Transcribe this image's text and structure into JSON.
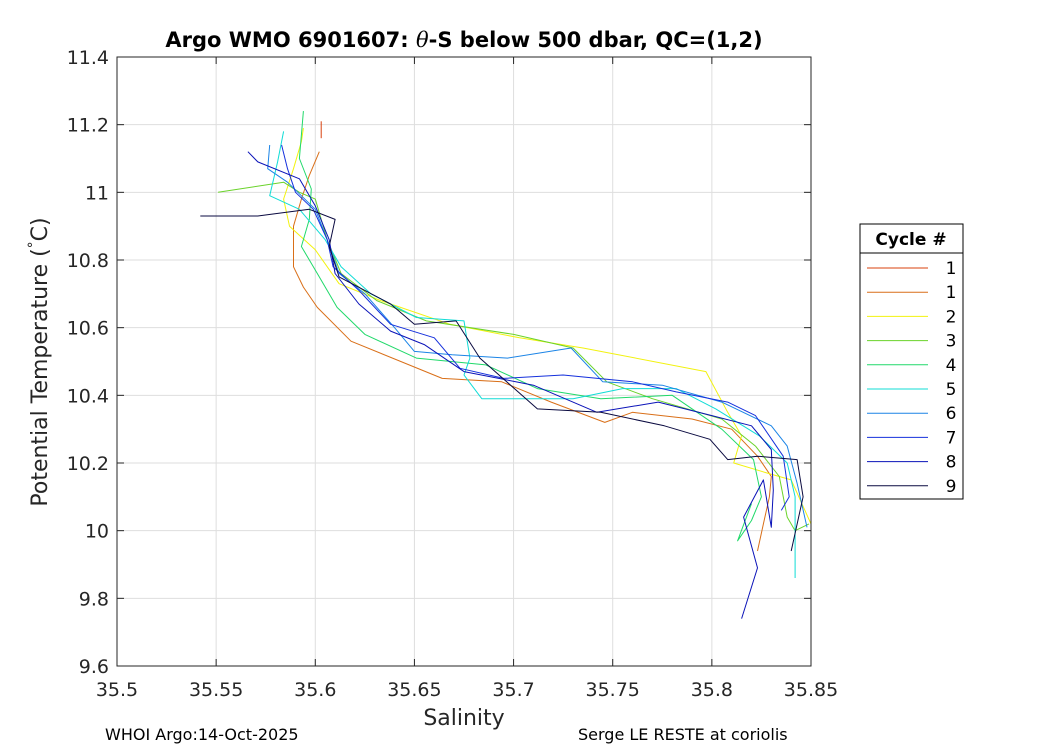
{
  "chart_data": {
    "type": "line",
    "title": "Argo WMO 6901607: θ-S below 500 dbar,  QC=(1,2)",
    "title_prefix": "Argo WMO 6901607: ",
    "title_theta": "θ",
    "title_suffix": "-S below 500 dbar,  QC=(1,2)",
    "xlabel": "Salinity",
    "ylabel": "Potential Temperature (°C)",
    "ylabel_prefix": "Potential Temperature (",
    "ylabel_degree": "°",
    "ylabel_suffix": "C)",
    "xlim": [
      35.5,
      35.85
    ],
    "ylim": [
      9.6,
      11.4
    ],
    "xticks": [
      35.5,
      35.55,
      35.6,
      35.65,
      35.7,
      35.75,
      35.8,
      35.85
    ],
    "xtick_labels": [
      "35.5",
      "35.55",
      "35.6",
      "35.65",
      "35.7",
      "35.75",
      "35.8",
      "35.85"
    ],
    "yticks": [
      9.6,
      9.8,
      10,
      10.2,
      10.4,
      10.6,
      10.8,
      11,
      11.2,
      11.4
    ],
    "ytick_labels": [
      "9.6",
      "9.8",
      "10",
      "10.2",
      "10.4",
      "10.6",
      "10.8",
      "11",
      "11.2",
      "11.4"
    ],
    "grid": true,
    "legend": {
      "title": "Cycle #",
      "position": "right"
    },
    "series": [
      {
        "name": "1",
        "color": "#d9410e",
        "points": [
          [
            35.603,
            11.16
          ],
          [
            35.603,
            11.21
          ]
        ]
      },
      {
        "name": "1",
        "color": "#d96f18",
        "points": [
          [
            35.602,
            11.12
          ],
          [
            35.597,
            11.05
          ],
          [
            35.593,
            10.98
          ],
          [
            35.589,
            10.9
          ],
          [
            35.589,
            10.78
          ],
          [
            35.594,
            10.72
          ],
          [
            35.601,
            10.66
          ],
          [
            35.618,
            10.56
          ],
          [
            35.664,
            10.45
          ],
          [
            35.694,
            10.44
          ],
          [
            35.719,
            10.38
          ],
          [
            35.746,
            10.32
          ],
          [
            35.76,
            10.35
          ],
          [
            35.79,
            10.33
          ],
          [
            35.81,
            10.3
          ],
          [
            35.823,
            10.22
          ],
          [
            35.83,
            10.16
          ],
          [
            35.829,
            10.1
          ],
          [
            35.826,
            10.02
          ],
          [
            35.823,
            9.94
          ]
        ]
      },
      {
        "name": "2",
        "color": "#f2f20f",
        "points": [
          [
            35.594,
            11.19
          ],
          [
            35.593,
            11.15
          ],
          [
            35.589,
            11.07
          ],
          [
            35.584,
            10.98
          ],
          [
            35.587,
            10.9
          ],
          [
            35.6,
            10.83
          ],
          [
            35.612,
            10.73
          ],
          [
            35.633,
            10.68
          ],
          [
            35.668,
            10.61
          ],
          [
            35.703,
            10.57
          ],
          [
            35.735,
            10.54
          ],
          [
            35.797,
            10.47
          ],
          [
            35.808,
            10.35
          ],
          [
            35.815,
            10.28
          ],
          [
            35.811,
            10.2
          ],
          [
            35.828,
            10.17
          ],
          [
            35.84,
            10.15
          ],
          [
            35.85,
            10.02
          ]
        ]
      },
      {
        "name": "3",
        "color": "#6ad32a",
        "points": [
          [
            35.551,
            11.0
          ],
          [
            35.584,
            11.03
          ],
          [
            35.592,
            11.0
          ],
          [
            35.6,
            10.98
          ],
          [
            35.606,
            10.86
          ],
          [
            35.613,
            10.76
          ],
          [
            35.631,
            10.68
          ],
          [
            35.656,
            10.62
          ],
          [
            35.7,
            10.58
          ],
          [
            35.73,
            10.54
          ],
          [
            35.747,
            10.44
          ],
          [
            35.77,
            10.39
          ],
          [
            35.805,
            10.33
          ],
          [
            35.822,
            10.25
          ],
          [
            35.834,
            10.16
          ],
          [
            35.838,
            10.04
          ],
          [
            35.842,
            10.0
          ],
          [
            35.849,
            10.02
          ]
        ]
      },
      {
        "name": "4",
        "color": "#20d96a",
        "points": [
          [
            35.594,
            11.24
          ],
          [
            35.592,
            11.1
          ],
          [
            35.598,
            11.01
          ],
          [
            35.597,
            10.92
          ],
          [
            35.593,
            10.84
          ],
          [
            35.601,
            10.76
          ],
          [
            35.611,
            10.66
          ],
          [
            35.625,
            10.58
          ],
          [
            35.651,
            10.51
          ],
          [
            35.686,
            10.49
          ],
          [
            35.712,
            10.42
          ],
          [
            35.744,
            10.39
          ],
          [
            35.78,
            10.4
          ],
          [
            35.805,
            10.3
          ],
          [
            35.821,
            10.21
          ],
          [
            35.825,
            10.1
          ],
          [
            35.82,
            10.03
          ],
          [
            35.813,
            9.97
          ],
          [
            35.82,
            10.08
          ]
        ]
      },
      {
        "name": "5",
        "color": "#10dcd6",
        "points": [
          [
            35.584,
            11.18
          ],
          [
            35.581,
            11.09
          ],
          [
            35.577,
            10.99
          ],
          [
            35.592,
            10.95
          ],
          [
            35.605,
            10.86
          ],
          [
            35.613,
            10.78
          ],
          [
            35.628,
            10.7
          ],
          [
            35.651,
            10.63
          ],
          [
            35.675,
            10.62
          ],
          [
            35.678,
            10.51
          ],
          [
            35.675,
            10.46
          ],
          [
            35.684,
            10.39
          ],
          [
            35.705,
            10.39
          ],
          [
            35.73,
            10.39
          ],
          [
            35.755,
            10.42
          ],
          [
            35.782,
            10.42
          ],
          [
            35.802,
            10.36
          ],
          [
            35.824,
            10.28
          ],
          [
            35.838,
            10.2
          ],
          [
            35.842,
            10.1
          ],
          [
            35.842,
            9.86
          ]
        ]
      },
      {
        "name": "6",
        "color": "#1b84e6",
        "points": [
          [
            35.577,
            11.14
          ],
          [
            35.576,
            11.07
          ],
          [
            35.586,
            11.03
          ],
          [
            35.6,
            10.95
          ],
          [
            35.606,
            10.86
          ],
          [
            35.612,
            10.76
          ],
          [
            35.625,
            10.7
          ],
          [
            35.64,
            10.6
          ],
          [
            35.65,
            10.53
          ],
          [
            35.669,
            10.52
          ],
          [
            35.697,
            10.51
          ],
          [
            35.729,
            10.54
          ],
          [
            35.745,
            10.44
          ],
          [
            35.775,
            10.43
          ],
          [
            35.805,
            10.38
          ],
          [
            35.83,
            10.31
          ],
          [
            35.838,
            10.25
          ],
          [
            35.843,
            10.14
          ],
          [
            35.848,
            10.01
          ]
        ]
      },
      {
        "name": "7",
        "color": "#1530dc",
        "points": [
          [
            35.583,
            11.14
          ],
          [
            35.586,
            11.07
          ],
          [
            35.59,
            11.0
          ],
          [
            35.599,
            10.95
          ],
          [
            35.606,
            10.86
          ],
          [
            35.609,
            10.78
          ],
          [
            35.622,
            10.71
          ],
          [
            35.638,
            10.61
          ],
          [
            35.66,
            10.57
          ],
          [
            35.673,
            10.48
          ],
          [
            35.695,
            10.45
          ],
          [
            35.725,
            10.46
          ],
          [
            35.76,
            10.44
          ],
          [
            35.782,
            10.41
          ],
          [
            35.808,
            10.38
          ],
          [
            35.822,
            10.34
          ],
          [
            35.836,
            10.22
          ],
          [
            35.839,
            10.1
          ],
          [
            35.835,
            10.06
          ]
        ]
      },
      {
        "name": "8",
        "color": "#0a12b8",
        "points": [
          [
            35.566,
            11.12
          ],
          [
            35.571,
            11.09
          ],
          [
            35.592,
            11.04
          ],
          [
            35.6,
            10.96
          ],
          [
            35.607,
            10.86
          ],
          [
            35.61,
            10.76
          ],
          [
            35.622,
            10.67
          ],
          [
            35.638,
            10.59
          ],
          [
            35.655,
            10.55
          ],
          [
            35.675,
            10.47
          ],
          [
            35.71,
            10.43
          ],
          [
            35.742,
            10.35
          ],
          [
            35.773,
            10.38
          ],
          [
            35.8,
            10.34
          ],
          [
            35.82,
            10.31
          ],
          [
            35.83,
            10.24
          ],
          [
            35.831,
            10.12
          ],
          [
            35.83,
            10.01
          ],
          [
            35.826,
            10.15
          ],
          [
            35.816,
            10.04
          ],
          [
            35.823,
            9.89
          ],
          [
            35.815,
            9.74
          ]
        ]
      },
      {
        "name": "9",
        "color": "#0a0a40",
        "points": [
          [
            35.542,
            10.93
          ],
          [
            35.571,
            10.93
          ],
          [
            35.597,
            10.95
          ],
          [
            35.61,
            10.92
          ],
          [
            35.607,
            10.84
          ],
          [
            35.612,
            10.75
          ],
          [
            35.638,
            10.67
          ],
          [
            35.65,
            10.61
          ],
          [
            35.671,
            10.62
          ],
          [
            35.683,
            10.51
          ],
          [
            35.712,
            10.36
          ],
          [
            35.744,
            10.35
          ],
          [
            35.776,
            10.31
          ],
          [
            35.799,
            10.27
          ],
          [
            35.808,
            10.21
          ],
          [
            35.823,
            10.22
          ],
          [
            35.843,
            10.21
          ],
          [
            35.846,
            10.1
          ],
          [
            35.84,
            9.94
          ]
        ]
      }
    ]
  },
  "footer": {
    "left": "WHOI Argo:14-Oct-2025",
    "right": "Serge LE RESTE at coriolis"
  }
}
